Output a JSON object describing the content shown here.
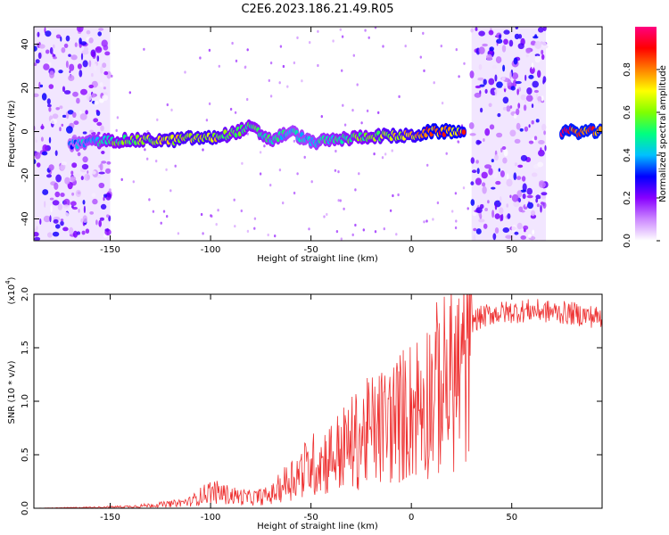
{
  "title": "C2E6.2023.186.21.49.R05",
  "chart_data": [
    {
      "type": "heatmap",
      "xlabel": "Height of straight line (km)",
      "ylabel": "Frequency (Hz)",
      "xlim": [
        -188,
        95
      ],
      "ylim": [
        -50,
        48
      ],
      "xticks": [
        -150,
        -100,
        -50,
        0,
        50
      ],
      "yticks": [
        -40,
        -20,
        0,
        20,
        40
      ],
      "colorbar": {
        "label": "Normalized spectral amplitude",
        "range": [
          0.0,
          1.0
        ],
        "ticks": [
          0.0,
          0.2,
          0.4,
          0.6,
          0.8
        ],
        "colors": [
          "#ffffff",
          "#cc88ff",
          "#8800ff",
          "#0000ff",
          "#00c0ff",
          "#00ff80",
          "#80ff00",
          "#ffff00",
          "#ff8000",
          "#ff0000",
          "#ff0080"
        ]
      },
      "noise_bands_x": [
        [
          -188,
          -150
        ],
        [
          30,
          67
        ]
      ],
      "ridge": [
        {
          "x": -170,
          "y": -6,
          "a": 0.35
        },
        {
          "x": -160,
          "y": -5,
          "a": 0.45
        },
        {
          "x": -150,
          "y": -4,
          "a": 0.55
        },
        {
          "x": -140,
          "y": -4,
          "a": 0.6
        },
        {
          "x": -130,
          "y": -4,
          "a": 0.65
        },
        {
          "x": -120,
          "y": -4,
          "a": 0.7
        },
        {
          "x": -110,
          "y": -3,
          "a": 0.7
        },
        {
          "x": -100,
          "y": -3,
          "a": 0.72
        },
        {
          "x": -90,
          "y": -1,
          "a": 0.6
        },
        {
          "x": -80,
          "y": 2,
          "a": 0.55
        },
        {
          "x": -70,
          "y": -4,
          "a": 0.5
        },
        {
          "x": -60,
          "y": 0,
          "a": 0.45
        },
        {
          "x": -50,
          "y": -5,
          "a": 0.45
        },
        {
          "x": -40,
          "y": -4,
          "a": 0.5
        },
        {
          "x": -30,
          "y": -3,
          "a": 0.55
        },
        {
          "x": -20,
          "y": -2,
          "a": 0.6
        },
        {
          "x": -10,
          "y": -2,
          "a": 0.7
        },
        {
          "x": 0,
          "y": -2,
          "a": 0.72
        },
        {
          "x": 10,
          "y": 0,
          "a": 0.85
        },
        {
          "x": 20,
          "y": 0,
          "a": 0.85
        },
        {
          "x": 27,
          "y": 0,
          "a": 0.8
        },
        {
          "x": 75,
          "y": 0,
          "a": 0.9
        },
        {
          "x": 85,
          "y": 0,
          "a": 0.9
        },
        {
          "x": 95,
          "y": 0,
          "a": 0.9
        }
      ]
    },
    {
      "type": "line",
      "xlabel": "Height of straight line (km)",
      "ylabel": "SNR (10 * v/v)",
      "yunit": "(x10",
      "yunit_exp": "4",
      "xlim": [
        -188,
        95
      ],
      "ylim": [
        0,
        2.0
      ],
      "xticks": [
        -150,
        -100,
        -50,
        0,
        50
      ],
      "yticks": [
        0.0,
        0.5,
        1.0,
        1.5,
        2.0
      ],
      "color": "#ee3333",
      "envelope": [
        {
          "x": -188,
          "y": 0.0
        },
        {
          "x": -160,
          "y": 0.01
        },
        {
          "x": -140,
          "y": 0.02
        },
        {
          "x": -120,
          "y": 0.05
        },
        {
          "x": -110,
          "y": 0.08
        },
        {
          "x": -100,
          "y": 0.2
        },
        {
          "x": -90,
          "y": 0.15
        },
        {
          "x": -80,
          "y": 0.12
        },
        {
          "x": -70,
          "y": 0.15
        },
        {
          "x": -60,
          "y": 0.35
        },
        {
          "x": -50,
          "y": 0.5
        },
        {
          "x": -40,
          "y": 0.6
        },
        {
          "x": -30,
          "y": 0.75
        },
        {
          "x": -20,
          "y": 0.9
        },
        {
          "x": -10,
          "y": 1.0
        },
        {
          "x": 0,
          "y": 1.15
        },
        {
          "x": 10,
          "y": 1.35
        },
        {
          "x": 20,
          "y": 1.5
        },
        {
          "x": 30,
          "y": 1.75
        },
        {
          "x": 40,
          "y": 1.82
        },
        {
          "x": 60,
          "y": 1.85
        },
        {
          "x": 80,
          "y": 1.82
        },
        {
          "x": 95,
          "y": 1.78
        }
      ]
    }
  ]
}
